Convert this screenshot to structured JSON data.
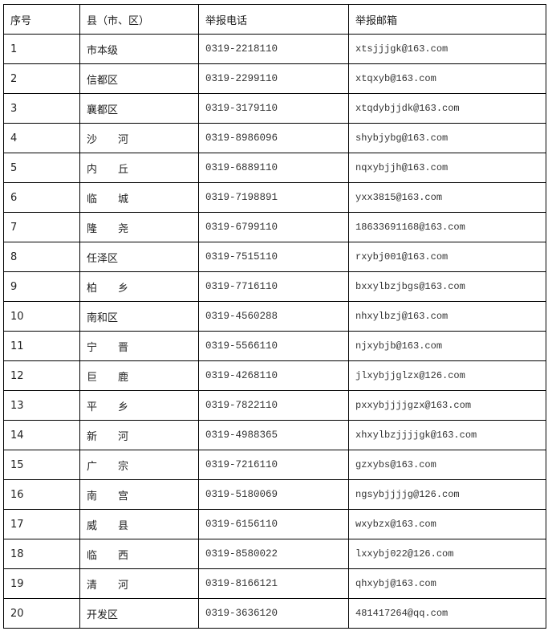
{
  "header": [
    "序号",
    "县（市、区）",
    "举报电话",
    "举报邮箱"
  ],
  "rows": [
    {
      "no": "1",
      "county": "市本级",
      "phone": "0319-2218110",
      "email": "xtsjjjgk@163.com"
    },
    {
      "no": "2",
      "county": "信都区",
      "phone": "0319-2299110",
      "email": "xtqxyb@163.com"
    },
    {
      "no": "3",
      "county": "襄都区",
      "phone": "0319-3179110",
      "email": "xtqdybjjdk@163.com"
    },
    {
      "no": "4",
      "county": "沙　　河",
      "phone": "0319-8986096",
      "email": "shybjybg@163.com"
    },
    {
      "no": "5",
      "county": "内　　丘",
      "phone": "0319-6889110",
      "email": "nqxybjjh@163.com"
    },
    {
      "no": "6",
      "county": "临　　城",
      "phone": "0319-7198891",
      "email": "yxx3815@163.com"
    },
    {
      "no": "7",
      "county": "隆　　尧",
      "phone": "0319-6799110",
      "email": "18633691168@163.com"
    },
    {
      "no": "8",
      "county": "任泽区",
      "phone": "0319-7515110",
      "email": "rxybj001@163.com"
    },
    {
      "no": "9",
      "county": "柏　　乡",
      "phone": "0319-7716110",
      "email": "bxxylbzjbgs@163.com"
    },
    {
      "no": "10",
      "county": "南和区",
      "phone": "0319-4560288",
      "email": "nhxylbzj@163.com"
    },
    {
      "no": "11",
      "county": "宁　　晋",
      "phone": "0319-5566110",
      "email": "njxybjb@163.com"
    },
    {
      "no": "12",
      "county": "巨　　鹿",
      "phone": "0319-4268110",
      "email": "jlxybjjglzx@126.com"
    },
    {
      "no": "13",
      "county": "平　　乡",
      "phone": "0319-7822110",
      "email": "pxxybjjjjgzx@163.com"
    },
    {
      "no": "14",
      "county": "新　　河",
      "phone": "0319-4988365",
      "email": "xhxylbzjjjjgk@163.com"
    },
    {
      "no": "15",
      "county": "广　　宗",
      "phone": "0319-7216110",
      "email": "gzxybs@163.com"
    },
    {
      "no": "16",
      "county": "南　　宫",
      "phone": "0319-5180069",
      "email": "ngsybjjjjg@126.com"
    },
    {
      "no": "17",
      "county": "威　　县",
      "phone": "0319-6156110",
      "email": "wxybzx@163.com"
    },
    {
      "no": "18",
      "county": "临　　西",
      "phone": "0319-8580022",
      "email": "lxxybj022@126.com"
    },
    {
      "no": "19",
      "county": "清　　河",
      "phone": "0319-8166121",
      "email": "qhxybj@163.com"
    },
    {
      "no": "20",
      "county": "开发区",
      "phone": "0319-3636120",
      "email": "481417264@qq.com"
    }
  ]
}
